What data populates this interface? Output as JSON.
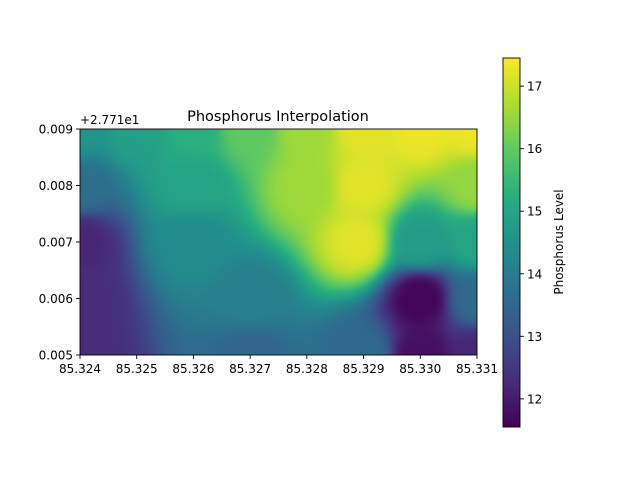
{
  "chart_data": {
    "type": "heatmap",
    "title": "Phosphorus Interpolation",
    "xlabel": "",
    "ylabel": "",
    "y_offset_label": "+2.771e1",
    "colorbar_label": "Phosphorus Level",
    "colormap": "viridis",
    "xlim": [
      85.324,
      85.331
    ],
    "ylim": [
      0.005,
      0.009
    ],
    "x_ticks": [
      "85.324",
      "85.325",
      "85.326",
      "85.327",
      "85.328",
      "85.329",
      "85.330",
      "85.331"
    ],
    "y_ticks": [
      "0.005",
      "0.006",
      "0.007",
      "0.008",
      "0.009"
    ],
    "colorbar_range": [
      11.55,
      17.45
    ],
    "colorbar_ticks": [
      "12",
      "13",
      "14",
      "15",
      "16",
      "17"
    ],
    "grid": false,
    "field_samples": [
      {
        "x": 85.324,
        "y": 0.009,
        "value": 14.6
      },
      {
        "x": 85.325,
        "y": 0.009,
        "value": 14.9
      },
      {
        "x": 85.326,
        "y": 0.009,
        "value": 15.3
      },
      {
        "x": 85.327,
        "y": 0.009,
        "value": 16.0
      },
      {
        "x": 85.328,
        "y": 0.009,
        "value": 16.6
      },
      {
        "x": 85.329,
        "y": 0.009,
        "value": 17.2
      },
      {
        "x": 85.33,
        "y": 0.009,
        "value": 17.3
      },
      {
        "x": 85.331,
        "y": 0.009,
        "value": 17.3
      },
      {
        "x": 85.324,
        "y": 0.008,
        "value": 13.7
      },
      {
        "x": 85.326,
        "y": 0.008,
        "value": 15.0
      },
      {
        "x": 85.328,
        "y": 0.008,
        "value": 16.6
      },
      {
        "x": 85.329,
        "y": 0.008,
        "value": 17.2
      },
      {
        "x": 85.331,
        "y": 0.008,
        "value": 16.5
      },
      {
        "x": 85.324,
        "y": 0.007,
        "value": 12.2
      },
      {
        "x": 85.326,
        "y": 0.007,
        "value": 14.4
      },
      {
        "x": 85.3289,
        "y": 0.007,
        "value": 17.2
      },
      {
        "x": 85.33,
        "y": 0.007,
        "value": 14.8
      },
      {
        "x": 85.331,
        "y": 0.007,
        "value": 15.0
      },
      {
        "x": 85.324,
        "y": 0.006,
        "value": 12.3
      },
      {
        "x": 85.327,
        "y": 0.006,
        "value": 14.1
      },
      {
        "x": 85.33,
        "y": 0.006,
        "value": 11.6
      },
      {
        "x": 85.331,
        "y": 0.006,
        "value": 13.6
      },
      {
        "x": 85.324,
        "y": 0.005,
        "value": 12.3
      },
      {
        "x": 85.327,
        "y": 0.005,
        "value": 13.5
      },
      {
        "x": 85.329,
        "y": 0.005,
        "value": 13.6
      },
      {
        "x": 85.33,
        "y": 0.005,
        "value": 11.8
      },
      {
        "x": 85.331,
        "y": 0.005,
        "value": 12.2
      }
    ]
  }
}
